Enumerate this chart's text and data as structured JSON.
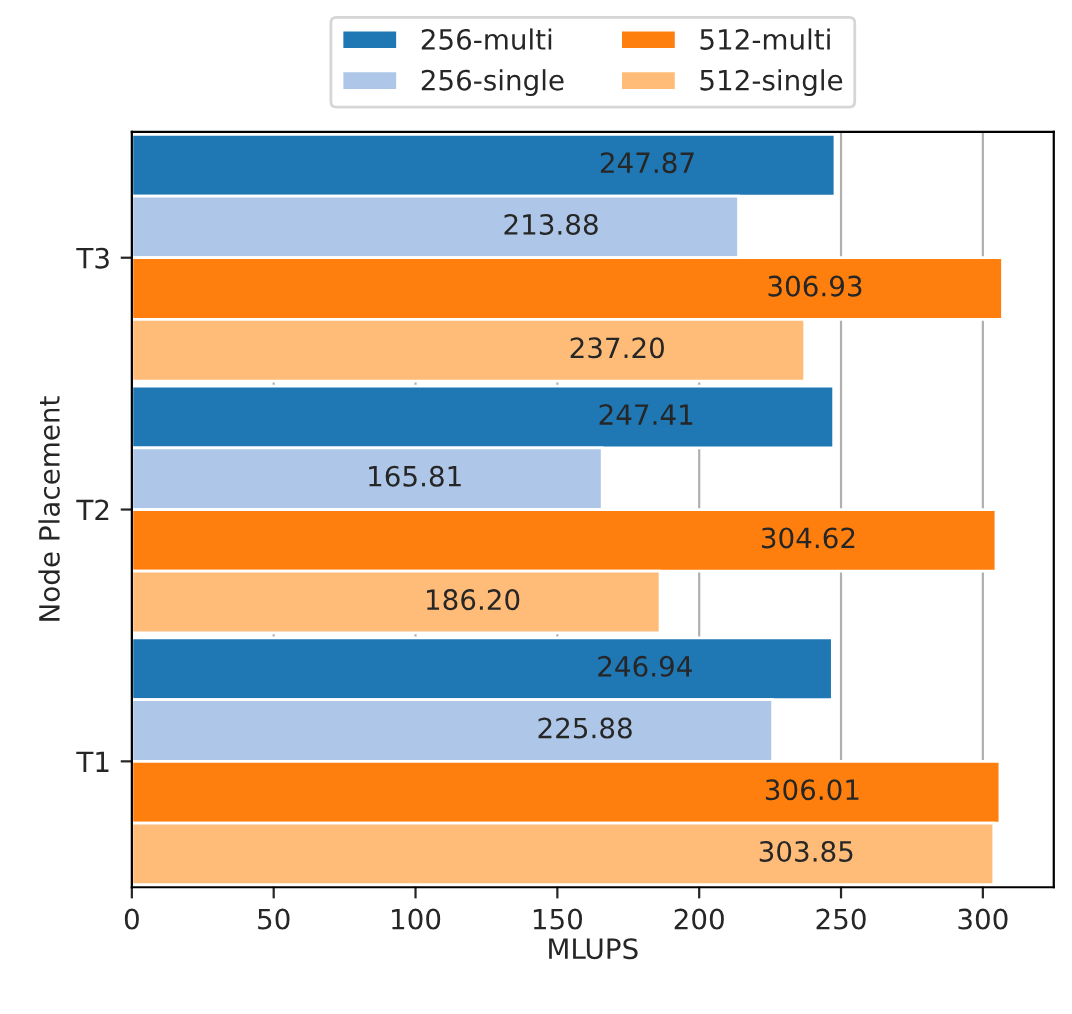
{
  "chart_data": {
    "type": "bar",
    "orientation": "horizontal",
    "xlabel": "MLUPS",
    "ylabel": "Node Placement",
    "categories": [
      "T3",
      "T2",
      "T1"
    ],
    "series": [
      {
        "name": "256-multi",
        "color": "#1f77b4",
        "values": [
          247.87,
          247.41,
          246.94
        ],
        "value_labels": [
          "247.87",
          "247.41",
          "246.94"
        ]
      },
      {
        "name": "256-single",
        "color": "#aec7e8",
        "values": [
          213.88,
          165.81,
          225.88
        ],
        "value_labels": [
          "213.88",
          "165.81",
          "225.88"
        ]
      },
      {
        "name": "512-multi",
        "color": "#ff7f0e",
        "values": [
          306.93,
          304.62,
          306.01
        ],
        "value_labels": [
          "306.93",
          "304.62",
          "306.01"
        ]
      },
      {
        "name": "512-single",
        "color": "#ffbb78",
        "values": [
          237.2,
          186.2,
          303.85
        ],
        "value_labels": [
          "237.20",
          "186.20",
          "303.85"
        ]
      }
    ],
    "xlim": [
      0,
      325
    ],
    "xticks": [
      0,
      50,
      100,
      150,
      200,
      250,
      300
    ],
    "grid": "x",
    "legend": "top"
  }
}
